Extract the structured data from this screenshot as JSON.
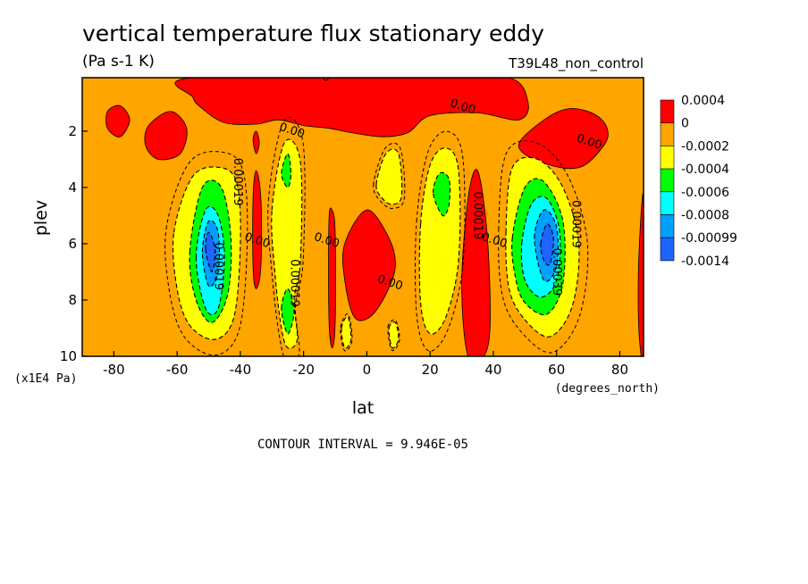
{
  "chart_data": {
    "type": "heatmap",
    "subtype": "filled-contour",
    "title": "vertical temperature flux stationary eddy",
    "subtitle": "(Pa s-1 K)",
    "run_label": "T39L48_non_control",
    "xlabel": "lat",
    "ylabel": "plev",
    "x_unit_label": "(degrees_north)",
    "y_unit_label": "(x1E4 Pa)",
    "xlim": [
      -90,
      87.5
    ],
    "ylim": [
      10,
      0.1
    ],
    "x_ticks": [
      -80,
      -60,
      -40,
      -20,
      0,
      20,
      40,
      60,
      80
    ],
    "x_tick_labels": [
      "-80",
      "-60",
      "-40",
      "-20",
      "0",
      "20",
      "40",
      "60",
      "80"
    ],
    "y_ticks": [
      2,
      4,
      6,
      8,
      10
    ],
    "y_tick_labels": [
      "2",
      "4",
      "6",
      "8",
      "10"
    ],
    "contour_interval_text": "CONTOUR INTERVAL = 9.946E-05",
    "legend": {
      "labels": [
        "0.0004",
        "0",
        "-0.0002",
        "-0.0004",
        "-0.0006",
        "-0.0008",
        "-0.00099",
        "-0.0014"
      ],
      "colors": [
        "#ff0000",
        "#ffa500",
        "#ffff00",
        "#00ff00",
        "#00ffff",
        "#00a0ff",
        "#1e64ff"
      ]
    },
    "background_level": {
      "value": "0 to -0.0002",
      "color": "#ffa500"
    },
    "regions": [
      {
        "level": 0,
        "color": "#ff0000",
        "pts": [
          [
            -55,
            0.1
          ],
          [
            20,
            0.1
          ],
          [
            45,
            0.1
          ],
          [
            51,
            1.0
          ],
          [
            48,
            1.6
          ],
          [
            35,
            1.35
          ],
          [
            20,
            1.45
          ],
          [
            13,
            2.05
          ],
          [
            5,
            2.2
          ],
          [
            -5,
            2.05
          ],
          [
            -12,
            1.9
          ],
          [
            -20,
            1.8
          ],
          [
            -28,
            1.6
          ],
          [
            -35,
            1.75
          ],
          [
            -45,
            1.7
          ],
          [
            -52,
            1.2
          ],
          [
            -55,
            0.8
          ]
        ]
      },
      {
        "level": 0,
        "color": "#ff0000",
        "pts": [
          [
            -82,
            1.3
          ],
          [
            -78,
            1.1
          ],
          [
            -75,
            1.6
          ],
          [
            -78,
            2.2
          ],
          [
            -82,
            1.9
          ]
        ]
      },
      {
        "level": 0,
        "color": "#ff0000",
        "pts": [
          [
            -69,
            1.8
          ],
          [
            -62,
            1.3
          ],
          [
            -57,
            1.9
          ],
          [
            -59,
            2.8
          ],
          [
            -66,
            3.0
          ],
          [
            -70,
            2.5
          ]
        ]
      },
      {
        "level": 0,
        "color": "#ff0000",
        "pts": [
          [
            48,
            2.5
          ],
          [
            56,
            1.6
          ],
          [
            64,
            1.2
          ],
          [
            72,
            1.4
          ],
          [
            76,
            1.9
          ],
          [
            75,
            2.5
          ],
          [
            67,
            3.3
          ],
          [
            55,
            3.1
          ]
        ]
      },
      {
        "level": 0,
        "color": "#ff0000",
        "pts": [
          [
            -36,
            2.3
          ],
          [
            -35,
            2.0
          ],
          [
            -34,
            2.4
          ],
          [
            -35,
            2.8
          ]
        ]
      },
      {
        "level": 0,
        "color": "#ff0000",
        "pts": [
          [
            -36,
            4.4
          ],
          [
            -35,
            3.4
          ],
          [
            -33.5,
            4.4
          ],
          [
            -33.5,
            6.8
          ],
          [
            -35,
            7.6
          ],
          [
            -36,
            6.8
          ]
        ]
      },
      {
        "level": 0,
        "color": "#ff0000",
        "pts": [
          [
            -12,
            5.2
          ],
          [
            -11,
            4.8
          ],
          [
            -10,
            5.6
          ],
          [
            -10,
            8.8
          ],
          [
            -11,
            9.7
          ],
          [
            -12,
            8.6
          ]
        ]
      },
      {
        "level": 0,
        "color": "#ff0000",
        "pts": [
          [
            -7,
            6.0
          ],
          [
            0,
            4.8
          ],
          [
            7,
            5.8
          ],
          [
            9,
            6.8
          ],
          [
            6,
            7.8
          ],
          [
            1,
            8.6
          ],
          [
            -4,
            8.6
          ],
          [
            -7,
            7.3
          ]
        ]
      },
      {
        "level": 0,
        "color": "#ff0000",
        "pts": [
          [
            30,
            7.5
          ],
          [
            32,
            4.4
          ],
          [
            35,
            3.4
          ],
          [
            38,
            5.6
          ],
          [
            39,
            8.8
          ],
          [
            37,
            10
          ],
          [
            32,
            10
          ]
        ]
      },
      {
        "level": 0,
        "color": "#ff0000",
        "pts": [
          [
            86,
            6.5
          ],
          [
            87.5,
            4.3
          ],
          [
            87.5,
            10
          ],
          [
            86,
            9
          ]
        ]
      },
      {
        "level": 1,
        "color": "#ffff00",
        "pts": [
          [
            -61,
            5.6
          ],
          [
            -55,
            3.6
          ],
          [
            -46,
            3.3
          ],
          [
            -41,
            3.9
          ],
          [
            -40,
            6.0
          ],
          [
            -42,
            8.6
          ],
          [
            -48,
            9.4
          ],
          [
            -56,
            8.9
          ],
          [
            -60,
            7.6
          ]
        ]
      },
      {
        "level": 1,
        "color": "#ffff00",
        "pts": [
          [
            -30,
            4.8
          ],
          [
            -26,
            2.4
          ],
          [
            -21,
            3.1
          ],
          [
            -21,
            6.6
          ],
          [
            -23,
            8.0
          ],
          [
            -22,
            9.4
          ],
          [
            -25,
            9.7
          ],
          [
            -27,
            9.0
          ],
          [
            -29,
            7.1
          ]
        ]
      },
      {
        "level": 1,
        "color": "#ffff00",
        "pts": [
          [
            3,
            3.9
          ],
          [
            6,
            2.8
          ],
          [
            10,
            2.8
          ],
          [
            11,
            4.3
          ],
          [
            8,
            4.6
          ],
          [
            5,
            4.4
          ]
        ]
      },
      {
        "level": 1,
        "color": "#ffff00",
        "pts": [
          [
            17,
            5.3
          ],
          [
            20,
            3.2
          ],
          [
            25,
            2.6
          ],
          [
            29,
            3.4
          ],
          [
            29,
            6.6
          ],
          [
            25,
            8.6
          ],
          [
            20,
            9.2
          ],
          [
            17,
            8.1
          ]
        ]
      },
      {
        "level": 1,
        "color": "#ffff00",
        "pts": [
          [
            44,
            5.6
          ],
          [
            46,
            3.3
          ],
          [
            54,
            3.0
          ],
          [
            62,
            4.0
          ],
          [
            67,
            6.0
          ],
          [
            65,
            8.2
          ],
          [
            58,
            9.3
          ],
          [
            50,
            8.7
          ],
          [
            45,
            7.6
          ]
        ]
      },
      {
        "level": 1,
        "color": "#ffff00",
        "pts": [
          [
            -8,
            9.0
          ],
          [
            -6,
            8.6
          ],
          [
            -5,
            9.4
          ],
          [
            -7,
            9.7
          ]
        ]
      },
      {
        "level": 1,
        "color": "#ffff00",
        "pts": [
          [
            7,
            9.0
          ],
          [
            9,
            8.8
          ],
          [
            10,
            9.4
          ],
          [
            8,
            9.7
          ]
        ]
      },
      {
        "level": 2,
        "color": "#00ff00",
        "pts": [
          [
            -56,
            6.3
          ],
          [
            -52,
            4.0
          ],
          [
            -46,
            4.0
          ],
          [
            -43,
            5.8
          ],
          [
            -44,
            7.8
          ],
          [
            -49,
            8.8
          ],
          [
            -54,
            8.0
          ]
        ]
      },
      {
        "level": 2,
        "color": "#00ff00",
        "pts": [
          [
            -27,
            3.5
          ],
          [
            -25,
            2.8
          ],
          [
            -24,
            3.5
          ],
          [
            -25,
            4.0
          ]
        ]
      },
      {
        "level": 2,
        "color": "#00ff00",
        "pts": [
          [
            -27,
            8.3
          ],
          [
            -25,
            7.6
          ],
          [
            -23,
            8.4
          ],
          [
            -25,
            9.2
          ]
        ]
      },
      {
        "level": 2,
        "color": "#00ff00",
        "pts": [
          [
            21,
            4.2
          ],
          [
            23,
            3.5
          ],
          [
            26,
            3.7
          ],
          [
            26,
            4.6
          ],
          [
            24,
            5.0
          ]
        ]
      },
      {
        "level": 2,
        "color": "#00ff00",
        "pts": [
          [
            46,
            5.8
          ],
          [
            50,
            4.0
          ],
          [
            56,
            3.8
          ],
          [
            62,
            5.2
          ],
          [
            62,
            7.4
          ],
          [
            57,
            8.5
          ],
          [
            50,
            8.1
          ],
          [
            47,
            7.2
          ]
        ]
      },
      {
        "level": 3,
        "color": "#00ffff",
        "pts": [
          [
            -54,
            6.5
          ],
          [
            -51,
            4.8
          ],
          [
            -47,
            5.0
          ],
          [
            -45,
            6.5
          ],
          [
            -47,
            8.3
          ],
          [
            -51,
            8.3
          ]
        ]
      },
      {
        "level": 3,
        "color": "#00ffff",
        "pts": [
          [
            49,
            6.0
          ],
          [
            52,
            4.6
          ],
          [
            57,
            4.4
          ],
          [
            61,
            5.6
          ],
          [
            60,
            7.3
          ],
          [
            55,
            7.9
          ],
          [
            50,
            7.3
          ]
        ]
      },
      {
        "level": 4,
        "color": "#00a0ff",
        "pts": [
          [
            -52,
            6.3
          ],
          [
            -50,
            5.2
          ],
          [
            -47,
            5.6
          ],
          [
            -47,
            7.0
          ],
          [
            -50,
            7.5
          ]
        ]
      },
      {
        "level": 4,
        "color": "#00a0ff",
        "pts": [
          [
            53,
            5.8
          ],
          [
            56,
            4.8
          ],
          [
            60,
            5.4
          ],
          [
            60,
            6.8
          ],
          [
            56,
            7.3
          ]
        ]
      },
      {
        "level": 5,
        "color": "#1e64ff",
        "pts": [
          [
            -51,
            6.2
          ],
          [
            -50,
            5.6
          ],
          [
            -48,
            6.2
          ],
          [
            -49,
            7.0
          ]
        ]
      },
      {
        "level": 5,
        "color": "#1e64ff",
        "pts": [
          [
            55,
            6.0
          ],
          [
            57,
            5.3
          ],
          [
            59,
            5.8
          ],
          [
            58,
            6.7
          ],
          [
            56,
            6.6
          ]
        ]
      }
    ],
    "contour_labels": [
      {
        "text": "0.00",
        "x": -16,
        "y": 0.1
      },
      {
        "text": "0.00",
        "x": 30,
        "y": 1.25
      },
      {
        "text": "0.00",
        "x": -24,
        "y": 2.1
      },
      {
        "text": "0.00",
        "x": 70,
        "y": 2.5
      },
      {
        "text": "0.00019",
        "x": -42,
        "y": 3.8
      },
      {
        "text": "0.00",
        "x": -35,
        "y": 6.0
      },
      {
        "text": "0.00019",
        "x": -48,
        "y": 6.8
      },
      {
        "text": "0.00",
        "x": -13,
        "y": 6.0
      },
      {
        "text": "0.00019",
        "x": -24,
        "y": 7.4
      },
      {
        "text": "0.00",
        "x": 7,
        "y": 7.5
      },
      {
        "text": "0.00019",
        "x": 34,
        "y": 5.0
      },
      {
        "text": "0.00",
        "x": 40,
        "y": 6.0
      },
      {
        "text": "0.00019",
        "x": 65,
        "y": 5.3
      },
      {
        "text": "0.00039",
        "x": 59,
        "y": 7.0
      }
    ]
  }
}
